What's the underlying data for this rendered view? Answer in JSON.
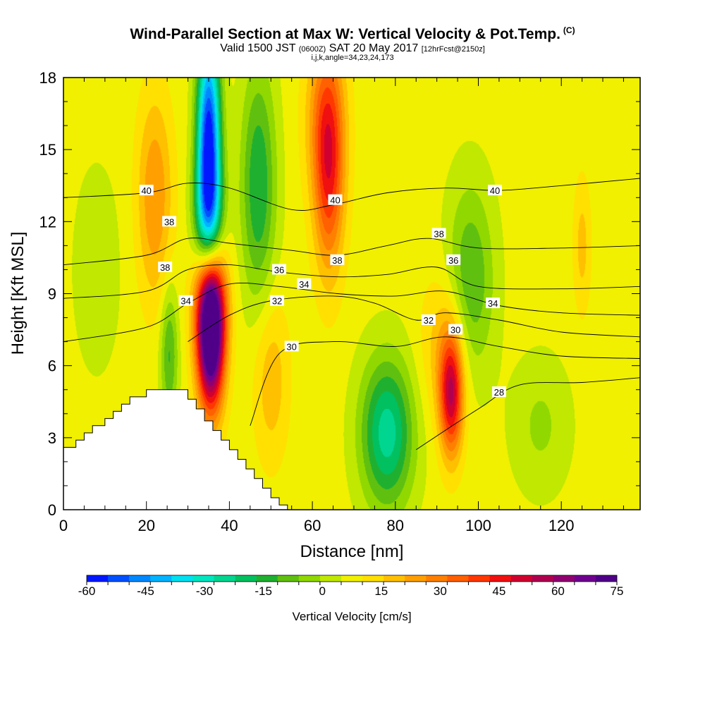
{
  "header": {
    "title": "Wind-Parallel Section at Max W: Vertical Velocity & Pot.Temp.",
    "copyright": "(C)",
    "valid_prefix": "Valid 1500 JST",
    "valid_utc": "(0600Z)",
    "valid_date": "SAT 20 May 2017",
    "forecast": "[12hrFcst@2150z]",
    "indices": "i,j,k,angle=34,23,24,173"
  },
  "chart_data": {
    "type": "heatmap",
    "xlabel": "Distance [nm]",
    "ylabel": "Height [Kft MSL]",
    "xlim": [
      0,
      139
    ],
    "ylim": [
      0,
      18
    ],
    "x_ticks": [
      "0",
      "20",
      "40",
      "60",
      "80",
      "100",
      "120"
    ],
    "x_tick_values": [
      0,
      20,
      40,
      60,
      80,
      100,
      120
    ],
    "y_ticks": [
      "0",
      "3",
      "6",
      "9",
      "12",
      "15",
      "18"
    ],
    "y_tick_values": [
      0,
      3,
      6,
      9,
      12,
      15,
      18
    ],
    "colorbar": {
      "title": "Vertical Velocity [cm/s]",
      "min": -60,
      "max": 75,
      "step": 5,
      "tick_labels": [
        "-60",
        "-45",
        "-30",
        "-15",
        "0",
        "15",
        "30",
        "45",
        "60",
        "75"
      ],
      "colors": [
        "#0018ff",
        "#0050ff",
        "#0088ff",
        "#00b4ff",
        "#00e0f0",
        "#00e6c0",
        "#00d690",
        "#00c060",
        "#20b030",
        "#60c010",
        "#90d800",
        "#c0e800",
        "#f0f000",
        "#ffe000",
        "#ffc000",
        "#ffa000",
        "#ff8000",
        "#ff6000",
        "#ff3800",
        "#f01010",
        "#d00030",
        "#b00050",
        "#900070",
        "#700090",
        "#500088"
      ]
    },
    "terrain_profile": [
      [
        0,
        2.6
      ],
      [
        3,
        2.6
      ],
      [
        3,
        2.9
      ],
      [
        5,
        2.9
      ],
      [
        5,
        3.2
      ],
      [
        7,
        3.2
      ],
      [
        7,
        3.5
      ],
      [
        10,
        3.5
      ],
      [
        10,
        3.8
      ],
      [
        12,
        3.8
      ],
      [
        12,
        4.1
      ],
      [
        14,
        4.1
      ],
      [
        14,
        4.4
      ],
      [
        16,
        4.4
      ],
      [
        16,
        4.7
      ],
      [
        20,
        4.7
      ],
      [
        20,
        5.0
      ],
      [
        30,
        5.0
      ],
      [
        30,
        4.6
      ],
      [
        32,
        4.6
      ],
      [
        32,
        4.2
      ],
      [
        34,
        4.2
      ],
      [
        34,
        3.7
      ],
      [
        36,
        3.7
      ],
      [
        36,
        3.3
      ],
      [
        38,
        3.3
      ],
      [
        38,
        2.9
      ],
      [
        40,
        2.9
      ],
      [
        40,
        2.5
      ],
      [
        42,
        2.5
      ],
      [
        42,
        2.1
      ],
      [
        44,
        2.1
      ],
      [
        44,
        1.7
      ],
      [
        46,
        1.7
      ],
      [
        46,
        1.3
      ],
      [
        48,
        1.3
      ],
      [
        48,
        0.9
      ],
      [
        50,
        0.9
      ],
      [
        50,
        0.5
      ],
      [
        52,
        0.5
      ],
      [
        52,
        0.2
      ],
      [
        54,
        0.2
      ],
      [
        54,
        0
      ]
    ],
    "w_features": [
      {
        "x": 35.5,
        "y": 7.3,
        "sx": 2.3,
        "sy": 2.2,
        "w": 75
      },
      {
        "x": 35.5,
        "y": 9.0,
        "sx": 3.0,
        "sy": 1.8,
        "w": 20
      },
      {
        "x": 35.0,
        "y": 15.5,
        "sx": 2.0,
        "sy": 3.0,
        "w": -60
      },
      {
        "x": 35.0,
        "y": 12.0,
        "sx": 2.5,
        "sy": 1.8,
        "w": -30
      },
      {
        "x": 64.0,
        "y": 14.0,
        "sx": 2.6,
        "sy": 3.0,
        "w": 30
      },
      {
        "x": 63.0,
        "y": 16.5,
        "sx": 3.5,
        "sy": 2.5,
        "w": 15
      },
      {
        "x": 47.0,
        "y": 13.5,
        "sx": 3.0,
        "sy": 3.5,
        "w": -22
      },
      {
        "x": 78.0,
        "y": 3.2,
        "sx": 4.5,
        "sy": 2.2,
        "w": -30
      },
      {
        "x": 93.5,
        "y": 4.8,
        "sx": 2.0,
        "sy": 1.8,
        "w": 40
      },
      {
        "x": 92.0,
        "y": 6.8,
        "sx": 4.0,
        "sy": 2.2,
        "w": 12
      },
      {
        "x": 98.0,
        "y": 9.5,
        "sx": 4.0,
        "sy": 2.8,
        "w": -18
      },
      {
        "x": 22.0,
        "y": 13.0,
        "sx": 3.0,
        "sy": 3.0,
        "w": 18
      },
      {
        "x": 25.5,
        "y": 6.5,
        "sx": 1.5,
        "sy": 2.0,
        "w": -18
      },
      {
        "x": 50.0,
        "y": 5.5,
        "sx": 3.0,
        "sy": 2.5,
        "w": 12
      },
      {
        "x": 125.0,
        "y": 11.0,
        "sx": 1.5,
        "sy": 2.0,
        "w": 10
      },
      {
        "x": 115.0,
        "y": 3.5,
        "sx": 5.0,
        "sy": 2.0,
        "w": -8
      },
      {
        "x": 8.0,
        "y": 10.0,
        "sx": 4.0,
        "sy": 3.0,
        "w": -6
      }
    ],
    "theta_contours": [
      {
        "value": 28,
        "points": [
          [
            85,
            2.5
          ],
          [
            100,
            4.2
          ],
          [
            110,
            5.2
          ],
          [
            125,
            5.3
          ],
          [
            139,
            5.5
          ]
        ]
      },
      {
        "value": 30,
        "points": [
          [
            45,
            3.5
          ],
          [
            52,
            6.5
          ],
          [
            65,
            7.0
          ],
          [
            80,
            6.8
          ],
          [
            92,
            7.2
          ],
          [
            105,
            6.8
          ],
          [
            120,
            6.4
          ],
          [
            139,
            6.3
          ]
        ]
      },
      {
        "value": 32,
        "points": [
          [
            30,
            7.0
          ],
          [
            40,
            8.1
          ],
          [
            50,
            8.7
          ],
          [
            65,
            8.9
          ],
          [
            75,
            8.6
          ],
          [
            85,
            7.9
          ],
          [
            92,
            8.2
          ],
          [
            105,
            7.9
          ],
          [
            120,
            7.4
          ],
          [
            139,
            7.2
          ]
        ]
      },
      {
        "value": 34,
        "points": [
          [
            0,
            7.0
          ],
          [
            20,
            7.6
          ],
          [
            30,
            8.6
          ],
          [
            40,
            9.4
          ],
          [
            52,
            9.3
          ],
          [
            66,
            9.0
          ],
          [
            80,
            8.9
          ],
          [
            92,
            9.1
          ],
          [
            105,
            8.5
          ],
          [
            120,
            8.2
          ],
          [
            139,
            8.1
          ]
        ]
      },
      {
        "value": 36,
        "points": [
          [
            0,
            8.8
          ],
          [
            20,
            9.1
          ],
          [
            30,
            10.0
          ],
          [
            40,
            10.2
          ],
          [
            52,
            9.9
          ],
          [
            66,
            9.7
          ],
          [
            78,
            9.8
          ],
          [
            90,
            10.1
          ],
          [
            100,
            9.3
          ],
          [
            120,
            9.2
          ],
          [
            139,
            9.3
          ]
        ]
      },
      {
        "value": 38,
        "points": [
          [
            0,
            10.2
          ],
          [
            20,
            10.6
          ],
          [
            30,
            11.3
          ],
          [
            40,
            11.1
          ],
          [
            55,
            10.8
          ],
          [
            66,
            10.6
          ],
          [
            78,
            11.0
          ],
          [
            88,
            11.3
          ],
          [
            100,
            10.9
          ],
          [
            120,
            10.9
          ],
          [
            139,
            11.0
          ]
        ]
      },
      {
        "value": 40,
        "points": [
          [
            0,
            13.0
          ],
          [
            20,
            13.2
          ],
          [
            30,
            13.6
          ],
          [
            40,
            13.4
          ],
          [
            55,
            12.5
          ],
          [
            65,
            12.7
          ],
          [
            78,
            13.2
          ],
          [
            92,
            13.4
          ],
          [
            105,
            13.3
          ],
          [
            120,
            13.5
          ],
          [
            139,
            13.8
          ]
        ]
      }
    ],
    "contour_labels": [
      {
        "text": "40",
        "x": 20.0,
        "y": 13.3
      },
      {
        "text": "38",
        "x": 25.5,
        "y": 12.0
      },
      {
        "text": "38",
        "x": 24.5,
        "y": 10.1
      },
      {
        "text": "34",
        "x": 29.5,
        "y": 8.7
      },
      {
        "text": "36",
        "x": 52.0,
        "y": 10.0
      },
      {
        "text": "34",
        "x": 58.0,
        "y": 9.4
      },
      {
        "text": "32",
        "x": 51.5,
        "y": 8.7
      },
      {
        "text": "30",
        "x": 55.0,
        "y": 6.8
      },
      {
        "text": "40",
        "x": 65.5,
        "y": 12.9
      },
      {
        "text": "38",
        "x": 66.0,
        "y": 10.4
      },
      {
        "text": "38",
        "x": 90.5,
        "y": 11.5
      },
      {
        "text": "36",
        "x": 94.0,
        "y": 10.4
      },
      {
        "text": "32",
        "x": 88.0,
        "y": 7.9
      },
      {
        "text": "30",
        "x": 94.5,
        "y": 7.5
      },
      {
        "text": "34",
        "x": 103.5,
        "y": 8.6
      },
      {
        "text": "28",
        "x": 105.0,
        "y": 4.9
      },
      {
        "text": "40",
        "x": 104.0,
        "y": 13.3
      }
    ]
  }
}
